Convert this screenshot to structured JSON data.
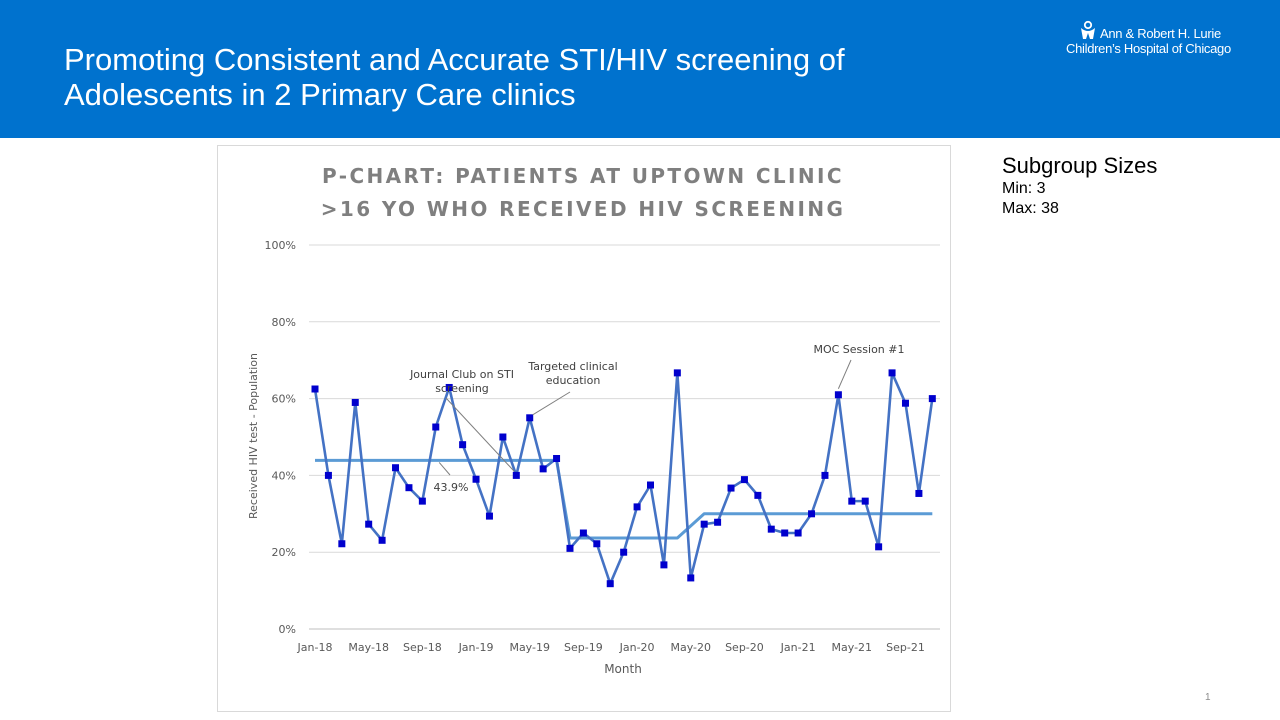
{
  "slide": {
    "title": "Promoting Consistent and Accurate STI/HIV screening of Adolescents in 2 Primary Care clinics",
    "logo_line1": "Ann & Robert H. Lurie",
    "logo_line2": "Children’s Hospital of Chicago",
    "page_number": "1",
    "colors": {
      "header": "#0072ce"
    }
  },
  "subgroup": {
    "title": "Subgroup Sizes",
    "min": "Min: 3",
    "max": "Max: 38"
  },
  "chart_data": {
    "type": "line",
    "title_line1": "P-CHART: PATIENTS AT UPTOWN CLINIC",
    "title_line2": ">16 YO WHO RECEIVED HIV SCREENING",
    "xlabel": "Month",
    "ylabel": "Received HIV test - Population",
    "ylim": [
      0,
      100
    ],
    "y_ticks": [
      0,
      20,
      40,
      60,
      80,
      100
    ],
    "y_tick_labels": [
      "0%",
      "20%",
      "40%",
      "60%",
      "80%",
      "100%"
    ],
    "x_tick_labels": [
      "Jan-18",
      "May-18",
      "Sep-18",
      "Jan-19",
      "May-19",
      "Sep-19",
      "Jan-20",
      "May-20",
      "Sep-20",
      "Jan-21",
      "May-21",
      "Sep-21"
    ],
    "x_tick_every": 4,
    "grid": true,
    "series": [
      {
        "color": "#4472c4",
        "marker_color": "#0000cd",
        "values": [
          62.5,
          40,
          22.2,
          59,
          27.3,
          23.1,
          42,
          36.8,
          33.3,
          52.6,
          62.9,
          48,
          39,
          29.4,
          50,
          40,
          55,
          41.7,
          44.4,
          21,
          25,
          22.2,
          11.8,
          20,
          31.8,
          37.5,
          16.7,
          66.7,
          13.3,
          27.3,
          27.8,
          36.7,
          38.9,
          34.8,
          26,
          25,
          25,
          30,
          40,
          61,
          33.3,
          33.3,
          21.4,
          66.7,
          58.8,
          35.3,
          60
        ]
      }
    ],
    "center_line": {
      "color": "#5b9bd5",
      "segments": [
        {
          "start": 0,
          "end": 18,
          "value": 43.9
        },
        {
          "start": 19,
          "end": 27,
          "value": 23.7
        },
        {
          "start": 29,
          "end": 46,
          "value": 30
        }
      ]
    },
    "annotations": [
      {
        "text_lines": [
          "Journal Club on STI",
          "screening"
        ],
        "index": 15
      },
      {
        "text_lines": [
          "Targeted clinical",
          "education"
        ],
        "index": 16
      },
      {
        "text_lines": [
          "MOC Session #1"
        ],
        "index": 39
      },
      {
        "text_lines": [
          "43.9%"
        ],
        "index": 10
      }
    ]
  }
}
